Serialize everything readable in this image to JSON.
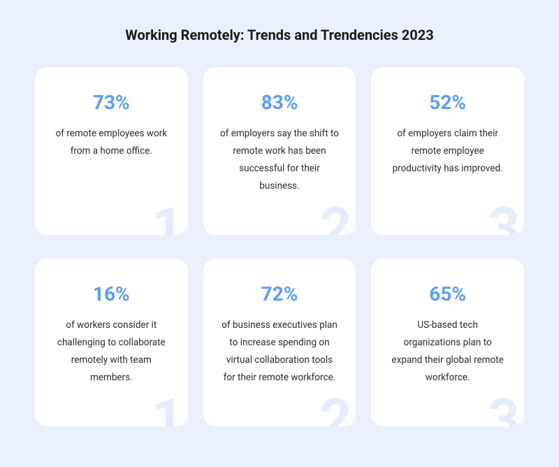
{
  "title": "Working Remotely: Trends and Trendencies 2023",
  "colors": {
    "page_bg": "#eaf0fb",
    "card_bg": "#ffffff",
    "title_color": "#1a1a1a",
    "percent_color": "#5b9df9",
    "desc_color": "#2b2b2b",
    "bg_number_color": "#e4ecfb"
  },
  "typography": {
    "title_fontsize": 20,
    "percent_fontsize": 28,
    "desc_fontsize": 13.5,
    "bgnum_fontsize": 80
  },
  "layout": {
    "grid_cols": 3,
    "grid_rows": 2,
    "card_radius": 18
  },
  "cards": [
    {
      "percent": "73%",
      "description": "of remote employees work from a home office.",
      "bg_number": "1"
    },
    {
      "percent": "83%",
      "description": "of employers say the shift to remote work has been successful for their business.",
      "bg_number": "2"
    },
    {
      "percent": "52%",
      "description": "of employers claim their remote employee productivity has improved.",
      "bg_number": "3"
    },
    {
      "percent": "16%",
      "description": "of workers consider it challenging to collaborate remotely with team members.",
      "bg_number": "1"
    },
    {
      "percent": "72%",
      "description": "of business executives plan to increase spending on virtual collaboration tools for their remote workforce.",
      "bg_number": "2"
    },
    {
      "percent": "65%",
      "description": "US-based tech organizations plan to expand their global remote workforce.",
      "bg_number": "3"
    }
  ]
}
